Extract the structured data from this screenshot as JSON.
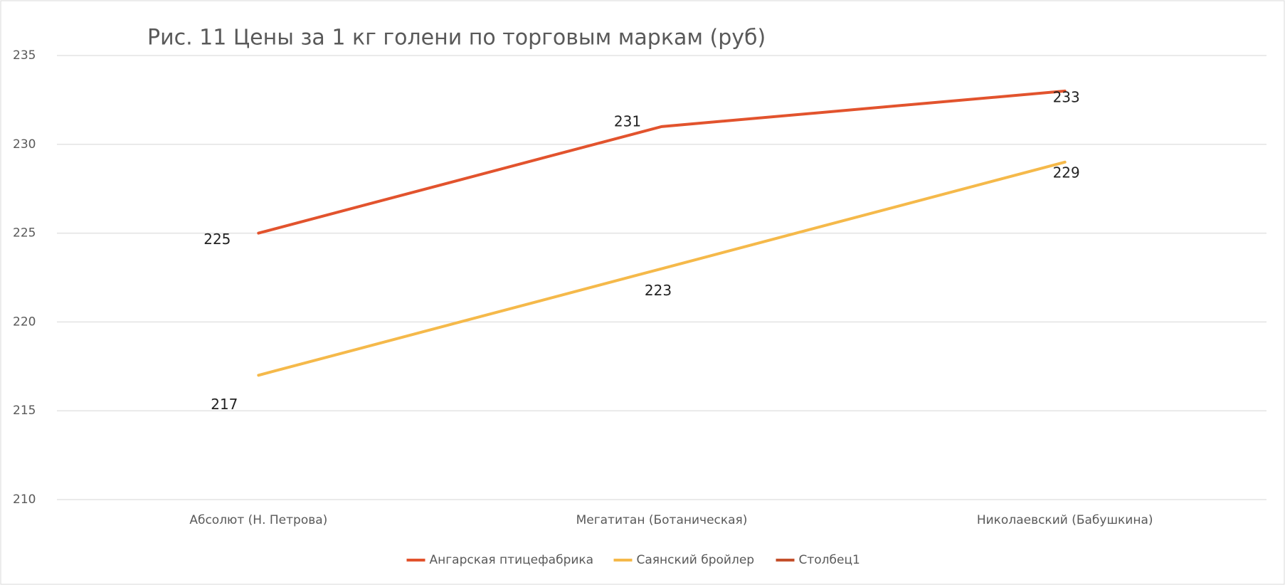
{
  "chart_data": {
    "type": "line",
    "title": "Рис. 11 Цены за 1 кг голени по торговым маркам (руб)",
    "categories": [
      "Абсолют (Н. Петрова)",
      "Мегатитан (Ботаническая)",
      "Николаевский (Бабушкина)"
    ],
    "series": [
      {
        "name": "Ангарская птицефабрика",
        "color": "#e2532d",
        "values": [
          225,
          231,
          233
        ]
      },
      {
        "name": "Саянский бройлер",
        "color": "#f5b94a",
        "values": [
          217,
          223,
          229
        ]
      },
      {
        "name": "Столбец1",
        "color": "#c4502c",
        "values": [
          null,
          null,
          null
        ]
      }
    ],
    "ylim": [
      210,
      235
    ],
    "yticks": [
      210,
      215,
      220,
      225,
      230,
      235
    ],
    "grid": true,
    "legend": "bottom"
  }
}
